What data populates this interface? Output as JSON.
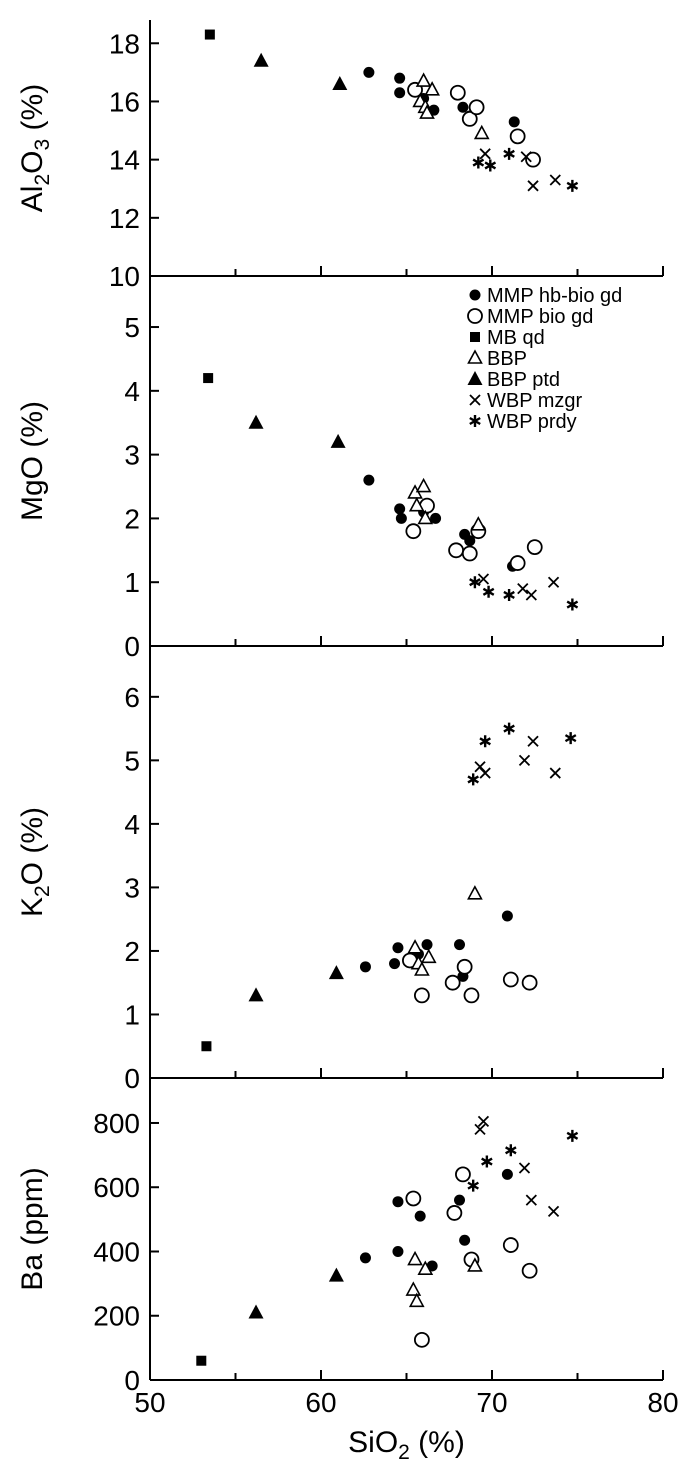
{
  "chart_data": {
    "type": "scatter",
    "xlabel_main": "SiO",
    "xlabel_sub": "2",
    "xlabel_unit": " (%)",
    "xlim": [
      50,
      80
    ],
    "xticks": [
      "50",
      "60",
      "70",
      "80"
    ],
    "series_styles": [
      {
        "name": "MMP hb-bio gd",
        "marker": "filled-circle"
      },
      {
        "name": "MMP bio gd",
        "marker": "open-circle"
      },
      {
        "name": "MB qd",
        "marker": "filled-square"
      },
      {
        "name": "BBP",
        "marker": "open-triangle"
      },
      {
        "name": "BBP ptd",
        "marker": "filled-triangle"
      },
      {
        "name": "WBP mzgr",
        "marker": "cross"
      },
      {
        "name": "WBP prdy",
        "marker": "asterisk"
      }
    ],
    "legend_position": "top-right of MgO panel",
    "panels": [
      {
        "ylabel_main": "Al",
        "ylabel_sub1": "2",
        "ylabel_mid": "O",
        "ylabel_sub2": "3",
        "ylabel_unit": " (%)",
        "ylim": [
          10,
          18.8
        ],
        "yticks": [
          "10",
          "12",
          "14",
          "16",
          "18"
        ],
        "points": {
          "MMP hb-bio gd": [
            [
              62.8,
              17.0
            ],
            [
              64.6,
              16.8
            ],
            [
              64.6,
              16.3
            ],
            [
              66.0,
              16.1
            ],
            [
              66.6,
              15.7
            ],
            [
              68.3,
              15.8
            ],
            [
              68.7,
              15.5
            ],
            [
              71.3,
              15.3
            ]
          ],
          "MMP bio gd": [
            [
              65.5,
              16.4
            ],
            [
              68.0,
              16.3
            ],
            [
              68.7,
              15.4
            ],
            [
              69.1,
              15.8
            ],
            [
              71.5,
              14.8
            ],
            [
              72.4,
              14.0
            ]
          ],
          "MB qd": [
            [
              53.5,
              18.3
            ]
          ],
          "BBP": [
            [
              65.8,
              16.0
            ],
            [
              66.0,
              16.7
            ],
            [
              66.1,
              15.8
            ],
            [
              66.2,
              15.6
            ],
            [
              66.5,
              16.4
            ],
            [
              69.4,
              14.9
            ]
          ],
          "BBP ptd": [
            [
              56.5,
              17.4
            ],
            [
              61.1,
              16.6
            ]
          ],
          "WBP mzgr": [
            [
              69.6,
              14.2
            ],
            [
              72.0,
              14.1
            ],
            [
              72.4,
              13.1
            ],
            [
              73.7,
              13.3
            ]
          ],
          "WBP prdy": [
            [
              69.2,
              13.9
            ],
            [
              69.9,
              13.8
            ],
            [
              71.0,
              14.2
            ],
            [
              74.7,
              13.1
            ]
          ]
        }
      },
      {
        "ylabel_main": "MgO",
        "ylabel_unit": " (%)",
        "ylim": [
          0,
          5.8
        ],
        "yticks": [
          "0",
          "1",
          "2",
          "3",
          "4",
          "5"
        ],
        "points": {
          "MMP hb-bio gd": [
            [
              62.8,
              2.6
            ],
            [
              64.6,
              2.15
            ],
            [
              64.7,
              2.0
            ],
            [
              66.0,
              2.1
            ],
            [
              66.7,
              2.0
            ],
            [
              68.4,
              1.75
            ],
            [
              68.7,
              1.65
            ],
            [
              71.2,
              1.25
            ]
          ],
          "MMP bio gd": [
            [
              65.4,
              1.8
            ],
            [
              66.2,
              2.2
            ],
            [
              67.9,
              1.5
            ],
            [
              68.7,
              1.45
            ],
            [
              69.2,
              1.8
            ],
            [
              71.5,
              1.3
            ],
            [
              72.5,
              1.55
            ]
          ],
          "MB qd": [
            [
              53.4,
              4.2
            ]
          ],
          "BBP": [
            [
              65.5,
              2.4
            ],
            [
              65.6,
              2.2
            ],
            [
              66.0,
              2.5
            ],
            [
              66.1,
              2.0
            ],
            [
              69.2,
              1.9
            ]
          ],
          "BBP ptd": [
            [
              56.2,
              3.5
            ],
            [
              61.0,
              3.2
            ]
          ],
          "WBP mzgr": [
            [
              69.5,
              1.05
            ],
            [
              71.8,
              0.9
            ],
            [
              72.3,
              0.8
            ],
            [
              73.6,
              1.0
            ]
          ],
          "WBP prdy": [
            [
              69.0,
              1.0
            ],
            [
              69.8,
              0.85
            ],
            [
              71.0,
              0.8
            ],
            [
              74.7,
              0.65
            ]
          ]
        }
      },
      {
        "ylabel_main": "K",
        "ylabel_sub1": "2",
        "ylabel_mid": "O",
        "ylabel_unit": " (%)",
        "ylim": [
          0,
          6.8
        ],
        "yticks": [
          "0",
          "1",
          "2",
          "3",
          "4",
          "5",
          "6"
        ],
        "points": {
          "MMP hb-bio gd": [
            [
              62.6,
              1.75
            ],
            [
              64.3,
              1.8
            ],
            [
              64.5,
              2.05
            ],
            [
              65.7,
              1.95
            ],
            [
              66.2,
              2.1
            ],
            [
              68.1,
              2.1
            ],
            [
              68.3,
              1.6
            ],
            [
              70.9,
              2.55
            ]
          ],
          "MMP bio gd": [
            [
              65.2,
              1.85
            ],
            [
              65.9,
              1.3
            ],
            [
              67.7,
              1.5
            ],
            [
              68.4,
              1.75
            ],
            [
              68.8,
              1.3
            ],
            [
              71.1,
              1.55
            ],
            [
              72.2,
              1.5
            ]
          ],
          "MB qd": [
            [
              53.3,
              0.5
            ]
          ],
          "BBP": [
            [
              65.5,
              2.05
            ],
            [
              65.7,
              1.8
            ],
            [
              65.9,
              1.7
            ],
            [
              66.3,
              1.9
            ],
            [
              69.0,
              2.9
            ]
          ],
          "BBP ptd": [
            [
              56.2,
              1.3
            ],
            [
              60.9,
              1.65
            ]
          ],
          "WBP mzgr": [
            [
              69.3,
              4.9
            ],
            [
              69.6,
              4.8
            ],
            [
              71.9,
              5.0
            ],
            [
              72.4,
              5.3
            ],
            [
              73.7,
              4.8
            ]
          ],
          "WBP prdy": [
            [
              68.9,
              4.7
            ],
            [
              69.6,
              5.3
            ],
            [
              71.0,
              5.5
            ],
            [
              74.6,
              5.35
            ]
          ]
        }
      },
      {
        "ylabel_main": "Ba",
        "ylabel_unit": " (ppm)",
        "ylim": [
          0,
          940
        ],
        "yticks": [
          "0",
          "200",
          "400",
          "600",
          "800"
        ],
        "points": {
          "MMP hb-bio gd": [
            [
              62.6,
              380
            ],
            [
              64.5,
              400
            ],
            [
              64.5,
              555
            ],
            [
              65.8,
              510
            ],
            [
              66.5,
              355
            ],
            [
              68.1,
              560
            ],
            [
              68.4,
              435
            ],
            [
              70.9,
              640
            ]
          ],
          "MMP bio gd": [
            [
              65.4,
              565
            ],
            [
              65.9,
              125
            ],
            [
              67.8,
              520
            ],
            [
              68.3,
              640
            ],
            [
              68.8,
              375
            ],
            [
              71.1,
              420
            ],
            [
              72.2,
              340
            ]
          ],
          "MB qd": [
            [
              53.0,
              60
            ]
          ],
          "BBP": [
            [
              65.4,
              280
            ],
            [
              65.5,
              375
            ],
            [
              65.6,
              245
            ],
            [
              66.1,
              345
            ],
            [
              69.0,
              355
            ]
          ],
          "BBP ptd": [
            [
              56.2,
              210
            ],
            [
              60.9,
              325
            ]
          ],
          "WBP mzgr": [
            [
              69.3,
              780
            ],
            [
              69.5,
              805
            ],
            [
              71.9,
              660
            ],
            [
              72.3,
              560
            ],
            [
              73.6,
              525
            ]
          ],
          "WBP prdy": [
            [
              68.9,
              605
            ],
            [
              69.7,
              680
            ],
            [
              71.1,
              715
            ],
            [
              74.7,
              760
            ]
          ]
        }
      }
    ]
  }
}
